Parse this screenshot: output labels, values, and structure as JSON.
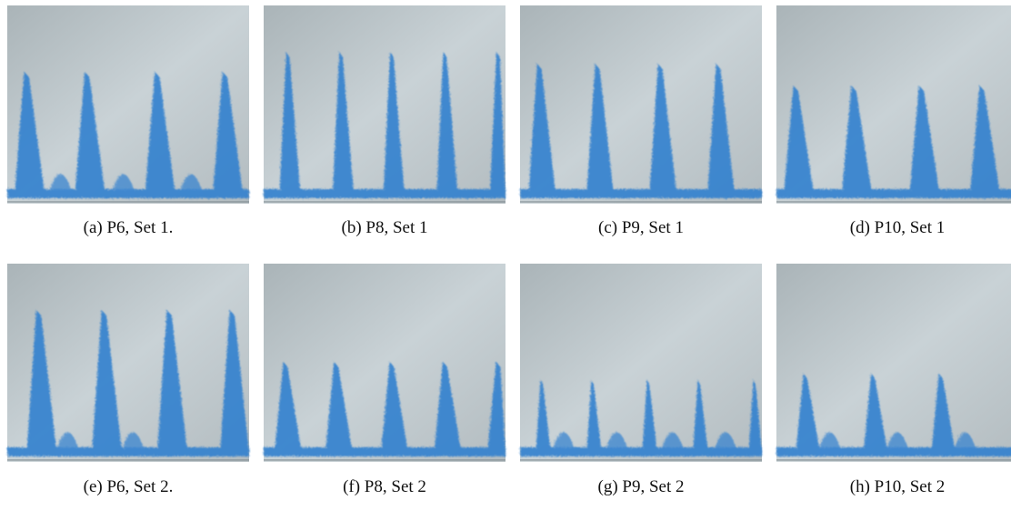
{
  "panels": [
    {
      "caption": "(a) P6, Set 1."
    },
    {
      "caption": "(b) P8, Set 1"
    },
    {
      "caption": "(c) P9, Set 1"
    },
    {
      "caption": "(d) P10, Set 1"
    },
    {
      "caption": "(e) P6, Set 2."
    },
    {
      "caption": "(f) P8, Set 2"
    },
    {
      "caption": "(g) P9, Set 2"
    },
    {
      "caption": "(h) P10, Set 2"
    }
  ]
}
